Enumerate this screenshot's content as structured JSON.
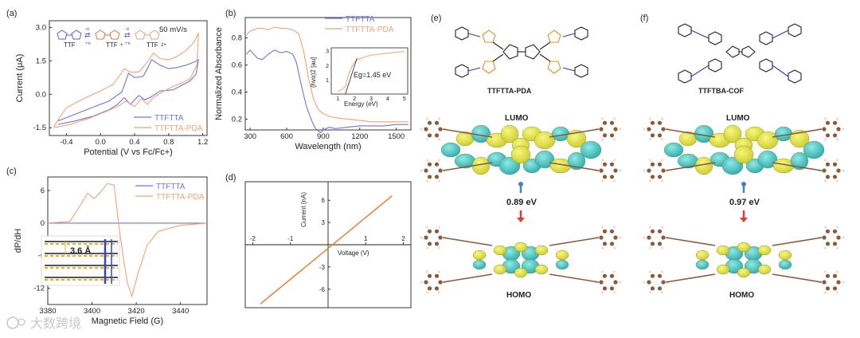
{
  "panels": {
    "a": {
      "letter": "(a)",
      "rate": "50 mV/s",
      "ttf": [
        "TTF",
        "TTF",
        "TTF"
      ],
      "ttf_charge": [
        "+",
        "2+"
      ],
      "arrow_lbl": [
        "-e",
        "+e",
        "-e",
        "+e"
      ]
    },
    "b": {
      "letter": "(b)",
      "inset": {
        "ylabel": "(hvα)2 [au]",
        "eg": "Eg=1.45 eV",
        "xlabel": "Energy (eV)"
      }
    },
    "c": {
      "letter": "(c)",
      "spacing": "3.6 Å"
    },
    "d": {
      "letter": "(d)"
    },
    "e": {
      "letter": "(e)",
      "name": "TTFTTA-PDA",
      "lumo": "LUMO",
      "homo": "HOMO",
      "gap": "0.89 eV"
    },
    "f": {
      "letter": "(f)",
      "name": "TTFTBA-COF",
      "lumo": "LUMO",
      "homo": "HOMO",
      "gap": "0.97 eV"
    }
  },
  "watermark": "大数跨境",
  "colors": {
    "blue": "#6f74d9",
    "orange": "#f0a274",
    "line_d": "#e37a2a",
    "yellow": "#e6e84a",
    "cyan": "#39c2c0",
    "bond": "#8a5a3c",
    "red_arrow": "#e53935",
    "blue_arrow": "#4a7fc1"
  },
  "chart_data": [
    {
      "panel": "a",
      "type": "line",
      "xlabel": "Potential (V vs Fc/Fc+)",
      "ylabel": "Current (μA)",
      "xlim": [
        -0.6,
        1.25
      ],
      "ylim": [
        -1.85,
        3.3
      ],
      "xticks": [
        -0.4,
        0.0,
        0.4,
        0.8,
        1.2
      ],
      "yticks": [
        -1.5,
        0.0,
        1.5,
        3.0
      ],
      "xtick_labels": [
        "-0.4",
        "0.0",
        "0.4",
        "0.8",
        "1.2"
      ],
      "ytick_labels": [
        "-1.5",
        "0.0",
        "1.5",
        "3.0"
      ],
      "legend": "bottom-right",
      "series": [
        {
          "name": "TTFTTA",
          "color": "#6f74d9",
          "x": [
            -0.5,
            -0.3,
            -0.1,
            0.1,
            0.25,
            0.33,
            0.4,
            0.5,
            0.55,
            0.6,
            0.7,
            0.8,
            0.9,
            1.0,
            1.1,
            1.15,
            1.12,
            1.05,
            0.95,
            0.85,
            0.7,
            0.6,
            0.52,
            0.45,
            0.35,
            0.28,
            0.2,
            0.1,
            -0.1,
            -0.3,
            -0.5
          ],
          "y": [
            -1.2,
            -0.9,
            -0.6,
            -0.3,
            0.1,
            0.95,
            0.75,
            0.8,
            1.15,
            1.55,
            1.3,
            1.15,
            1.2,
            1.3,
            1.45,
            1.55,
            0.9,
            0.6,
            0.4,
            0.2,
            0.15,
            -0.1,
            -0.25,
            -0.05,
            -0.45,
            -0.15,
            -0.45,
            -0.7,
            -1.0,
            -1.2,
            -1.35
          ]
        },
        {
          "name": "TTFTTA-PDA",
          "color": "#f0a274",
          "x": [
            -0.55,
            -0.4,
            -0.2,
            0.0,
            0.15,
            0.28,
            0.35,
            0.45,
            0.55,
            0.62,
            0.7,
            0.8,
            0.9,
            1.0,
            1.1,
            1.15,
            1.13,
            1.05,
            0.95,
            0.85,
            0.72,
            0.62,
            0.55,
            0.48,
            0.4,
            0.3,
            0.2,
            0.05,
            -0.15,
            -0.35,
            -0.55
          ],
          "y": [
            -1.45,
            -0.6,
            -0.2,
            0.15,
            0.45,
            1.15,
            1.0,
            1.0,
            1.45,
            1.85,
            1.6,
            1.55,
            1.7,
            1.95,
            2.35,
            2.75,
            1.3,
            0.7,
            0.5,
            0.35,
            0.1,
            -0.15,
            -0.45,
            -0.2,
            -0.55,
            -0.3,
            -0.55,
            -0.8,
            -1.1,
            -1.35,
            -1.5
          ]
        }
      ]
    },
    {
      "panel": "b",
      "type": "line",
      "xlabel": "Wavelength (nm)",
      "ylabel": "Normalized Absorbance",
      "xlim": [
        260,
        1620
      ],
      "ylim": [
        0.12,
        0.95
      ],
      "xticks": [
        300,
        600,
        900,
        1200,
        1500
      ],
      "yticks": [
        0.2,
        0.4,
        0.6,
        0.8
      ],
      "xtick_labels": [
        "300",
        "600",
        "900",
        "1200",
        "1500"
      ],
      "ytick_labels": [
        "0.2",
        "0.4",
        "0.6",
        "0.8"
      ],
      "legend": "top-right",
      "series": [
        {
          "name": "TTFTTA",
          "color": "#6f74d9",
          "x": [
            270,
            300,
            330,
            360,
            400,
            450,
            500,
            550,
            600,
            650,
            680,
            720,
            760,
            800,
            830,
            860,
            880,
            900,
            950,
            1000,
            1100,
            1200,
            1300,
            1400,
            1500,
            1600
          ],
          "y": [
            0.68,
            0.71,
            0.68,
            0.65,
            0.64,
            0.68,
            0.71,
            0.69,
            0.7,
            0.68,
            0.62,
            0.45,
            0.3,
            0.2,
            0.14,
            0.11,
            0.1,
            0.12,
            0.14,
            0.13,
            0.14,
            0.15,
            0.15,
            0.15,
            0.16,
            0.16
          ]
        },
        {
          "name": "TTFTTA-PDA",
          "color": "#f0a274",
          "x": [
            270,
            300,
            330,
            360,
            400,
            450,
            500,
            550,
            600,
            650,
            700,
            740,
            780,
            820,
            860,
            900,
            950,
            1000,
            1100,
            1200,
            1300,
            1400,
            1500,
            1600
          ],
          "y": [
            0.82,
            0.85,
            0.86,
            0.87,
            0.87,
            0.86,
            0.88,
            0.87,
            0.87,
            0.86,
            0.83,
            0.7,
            0.5,
            0.35,
            0.27,
            0.24,
            0.22,
            0.21,
            0.2,
            0.19,
            0.18,
            0.18,
            0.18,
            0.18
          ]
        }
      ],
      "inset": {
        "xlim": [
          0.6,
          5.2
        ],
        "ylim": [
          0,
          3.2
        ],
        "xticks": [
          1,
          2,
          3,
          4,
          5
        ],
        "yticks": [
          1,
          2,
          3
        ],
        "x": [
          1.0,
          1.2,
          1.45,
          1.6,
          1.8,
          2.0,
          2.3,
          2.6,
          3.0,
          3.4,
          3.8,
          4.2,
          4.6,
          5.0
        ],
        "y": [
          0.15,
          0.3,
          0.5,
          1.2,
          1.8,
          2.2,
          2.45,
          2.55,
          2.7,
          2.75,
          2.8,
          2.85,
          2.9,
          2.95
        ],
        "fit_x": [
          1.45,
          2.15
        ],
        "fit_y": [
          0.0,
          2.5
        ]
      }
    },
    {
      "panel": "c",
      "type": "line",
      "xlabel": "Magnetic Field (G)",
      "ylabel": "dP/dH",
      "xlim": [
        3380,
        3452
      ],
      "ylim": [
        -15,
        8.5
      ],
      "xticks": [
        3380,
        3400,
        3420,
        3440
      ],
      "yticks": [
        -12,
        -6,
        0,
        6
      ],
      "xtick_labels": [
        "3380",
        "3400",
        "3420",
        "3440"
      ],
      "ytick_labels": [
        "-12",
        "-6",
        "0",
        "6"
      ],
      "legend": "top-right",
      "series": [
        {
          "name": "TTFTTA",
          "color": "#6f74d9",
          "x": [
            3380,
            3452
          ],
          "y": [
            0,
            0
          ]
        },
        {
          "name": "TTFTTA-PDA",
          "color": "#f0a274",
          "x": [
            3380,
            3390,
            3395,
            3398,
            3401,
            3404,
            3407,
            3410,
            3412,
            3414,
            3416,
            3418,
            3421,
            3425,
            3430,
            3440,
            3452
          ],
          "y": [
            0,
            0.3,
            3.5,
            5.5,
            4.5,
            5.8,
            7.3,
            7.0,
            0.0,
            -6.0,
            -11.0,
            -13.5,
            -9.0,
            -4.0,
            -1.5,
            -0.4,
            0
          ]
        }
      ]
    },
    {
      "panel": "d",
      "type": "line",
      "xlabel": "Voltage (V)",
      "ylabel": "Current (nA)",
      "xlim": [
        -2.2,
        2.2
      ],
      "ylim": [
        -8.5,
        8.5
      ],
      "xticks": [
        -2,
        -1,
        1,
        2
      ],
      "yticks": [
        -6,
        -3,
        3,
        6
      ],
      "xtick_labels": [
        "-2",
        "-1",
        "1",
        "2"
      ],
      "ytick_labels": [
        "-6",
        "-3",
        "3",
        "6"
      ],
      "series": [
        {
          "name": "",
          "color": "#e37a2a",
          "x": [
            -1.8,
            1.7
          ],
          "y": [
            -8.0,
            6.6
          ]
        }
      ]
    }
  ]
}
